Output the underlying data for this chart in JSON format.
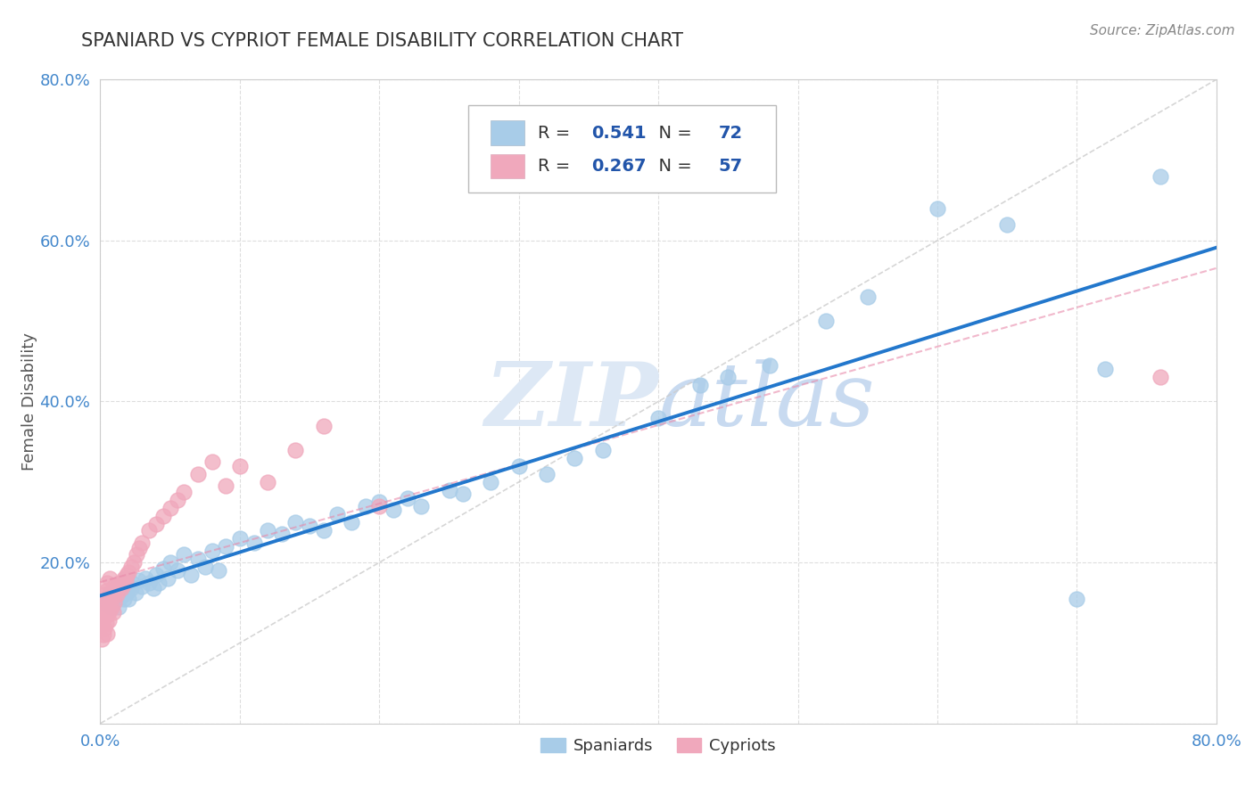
{
  "title": "SPANIARD VS CYPRIOT FEMALE DISABILITY CORRELATION CHART",
  "source_text": "Source: ZipAtlas.com",
  "ylabel": "Female Disability",
  "xlim": [
    0.0,
    0.8
  ],
  "ylim": [
    0.0,
    0.8
  ],
  "spaniards_R": 0.541,
  "spaniards_N": 72,
  "cypriots_R": 0.267,
  "cypriots_N": 57,
  "spaniard_color": "#a8cce8",
  "cypriot_color": "#f0a8bc",
  "trend_spaniard_color": "#2277cc",
  "trend_cypriot_color": "#e88aaa",
  "diag_color": "#cccccc",
  "background_color": "#ffffff",
  "grid_color": "#dddddd",
  "watermark_color": "#dde8f5",
  "title_color": "#333333",
  "tick_color": "#4488cc",
  "legend_color": "#2255aa",
  "spaniards_x": [
    0.003,
    0.004,
    0.005,
    0.006,
    0.007,
    0.008,
    0.009,
    0.01,
    0.011,
    0.012,
    0.013,
    0.014,
    0.015,
    0.016,
    0.017,
    0.018,
    0.019,
    0.02,
    0.021,
    0.022,
    0.023,
    0.025,
    0.027,
    0.03,
    0.032,
    0.035,
    0.038,
    0.04,
    0.042,
    0.045,
    0.048,
    0.05,
    0.055,
    0.06,
    0.065,
    0.07,
    0.075,
    0.08,
    0.085,
    0.09,
    0.1,
    0.11,
    0.12,
    0.13,
    0.14,
    0.15,
    0.16,
    0.17,
    0.18,
    0.19,
    0.2,
    0.21,
    0.22,
    0.23,
    0.25,
    0.26,
    0.28,
    0.3,
    0.32,
    0.34,
    0.36,
    0.4,
    0.43,
    0.45,
    0.48,
    0.52,
    0.55,
    0.6,
    0.65,
    0.7,
    0.72,
    0.76
  ],
  "spaniards_y": [
    0.15,
    0.155,
    0.148,
    0.152,
    0.16,
    0.145,
    0.158,
    0.163,
    0.155,
    0.17,
    0.145,
    0.165,
    0.158,
    0.172,
    0.155,
    0.18,
    0.162,
    0.155,
    0.17,
    0.168,
    0.175,
    0.162,
    0.178,
    0.17,
    0.18,
    0.175,
    0.168,
    0.185,
    0.175,
    0.192,
    0.18,
    0.2,
    0.19,
    0.21,
    0.185,
    0.205,
    0.195,
    0.215,
    0.19,
    0.22,
    0.23,
    0.225,
    0.24,
    0.235,
    0.25,
    0.245,
    0.24,
    0.26,
    0.25,
    0.27,
    0.275,
    0.265,
    0.28,
    0.27,
    0.29,
    0.285,
    0.3,
    0.32,
    0.31,
    0.33,
    0.34,
    0.38,
    0.42,
    0.43,
    0.445,
    0.5,
    0.53,
    0.64,
    0.62,
    0.155,
    0.44,
    0.68
  ],
  "cypriots_x": [
    0.0,
    0.001,
    0.001,
    0.002,
    0.002,
    0.002,
    0.003,
    0.003,
    0.003,
    0.004,
    0.004,
    0.004,
    0.005,
    0.005,
    0.005,
    0.005,
    0.006,
    0.006,
    0.007,
    0.007,
    0.007,
    0.008,
    0.008,
    0.009,
    0.009,
    0.01,
    0.01,
    0.011,
    0.012,
    0.013,
    0.014,
    0.015,
    0.016,
    0.017,
    0.018,
    0.019,
    0.02,
    0.022,
    0.024,
    0.026,
    0.028,
    0.03,
    0.035,
    0.04,
    0.045,
    0.05,
    0.055,
    0.06,
    0.07,
    0.08,
    0.09,
    0.1,
    0.12,
    0.14,
    0.16,
    0.2,
    0.76
  ],
  "cypriots_y": [
    0.12,
    0.105,
    0.135,
    0.11,
    0.13,
    0.15,
    0.118,
    0.14,
    0.16,
    0.125,
    0.145,
    0.165,
    0.112,
    0.135,
    0.155,
    0.175,
    0.128,
    0.148,
    0.14,
    0.16,
    0.18,
    0.145,
    0.165,
    0.138,
    0.158,
    0.15,
    0.17,
    0.165,
    0.16,
    0.17,
    0.175,
    0.168,
    0.172,
    0.18,
    0.178,
    0.185,
    0.188,
    0.195,
    0.2,
    0.21,
    0.218,
    0.225,
    0.24,
    0.248,
    0.258,
    0.268,
    0.278,
    0.288,
    0.31,
    0.325,
    0.295,
    0.32,
    0.3,
    0.34,
    0.37,
    0.27,
    0.43
  ]
}
